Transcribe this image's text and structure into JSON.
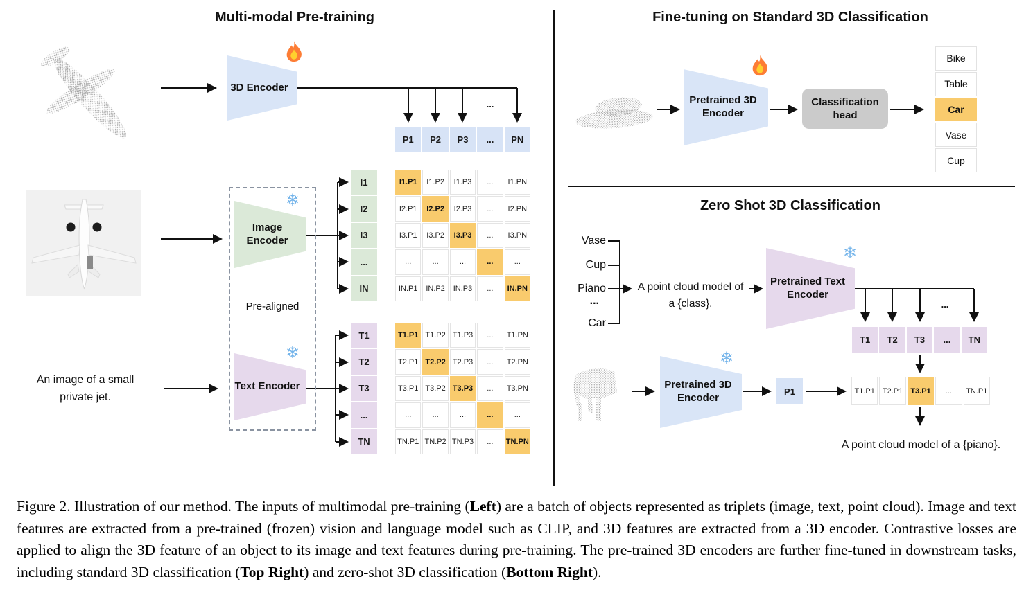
{
  "ellipsis": "...",
  "icons": {
    "snowflake": "❄",
    "fire": "flame"
  },
  "colors": {
    "encoder_blue": "#d9e5f7",
    "encoder_green": "#dbe9d8",
    "encoder_purple": "#e6d9ec",
    "cell_blue": "#d7e3f6",
    "highlight_orange": "#f9cb6d",
    "classification_head_gray": "#cbcbcb",
    "snowflake_blue": "#72b3ea"
  },
  "left_panel": {
    "title": "Multi-modal Pre-training",
    "encoder_3d_label": "3D Encoder",
    "image_encoder_label": "Image Encoder",
    "text_encoder_label": "Text Encoder",
    "pre_aligned_label": "Pre-aligned",
    "image_caption_line1": "An image of a small",
    "image_caption_line2": "private jet."
  },
  "top_right_panel": {
    "title": "Fine-tuning on Standard 3D Classification",
    "pretrained_3d_encoder_label": "Pretrained 3D Encoder",
    "classification_head_label": "Classification head"
  },
  "bottom_right_panel": {
    "title": "Zero Shot 3D Classification",
    "class_labels": [
      "Vase",
      "Cup",
      "Piano",
      "...",
      "Car"
    ],
    "prompt_line1": "A point cloud model of",
    "prompt_line2": "a {class}.",
    "pretrained_text_encoder_label": "Pretrained Text Encoder",
    "pretrained_3d_encoder_label": "Pretrained 3D Encoder",
    "p1_label": "P1",
    "result_text": "A point cloud model of a {piano}."
  },
  "grids": {
    "p_row": {
      "cells": [
        [
          "P1",
          "P2",
          "P3",
          "...",
          "PN"
        ]
      ]
    },
    "i_labels": {
      "cells": [
        [
          "I1"
        ],
        [
          "I2"
        ],
        [
          "I3"
        ],
        [
          "..."
        ],
        [
          "IN"
        ]
      ]
    },
    "i_matrix": {
      "cells": [
        [
          "I1.P1",
          "I1.P2",
          "I1.P3",
          "...",
          "I1.PN"
        ],
        [
          "I2.P1",
          "I2.P2",
          "I2.P3",
          "...",
          "I2.PN"
        ],
        [
          "I3.P1",
          "I3.P2",
          "I3.P3",
          "...",
          "I3.PN"
        ],
        [
          "...",
          "...",
          "...",
          "...",
          "..."
        ],
        [
          "IN.P1",
          "IN.P2",
          "IN.P3",
          "...",
          "IN.PN"
        ]
      ],
      "highlights": [
        [
          0,
          0
        ],
        [
          1,
          1
        ],
        [
          2,
          2
        ],
        [
          3,
          3
        ],
        [
          4,
          4
        ]
      ]
    },
    "t_labels": {
      "cells": [
        [
          "T1"
        ],
        [
          "T2"
        ],
        [
          "T3"
        ],
        [
          "..."
        ],
        [
          "TN"
        ]
      ]
    },
    "t_matrix": {
      "cells": [
        [
          "T1.P1",
          "T1.P2",
          "T1.P3",
          "...",
          "T1.PN"
        ],
        [
          "T2.P1",
          "T2.P2",
          "T2.P3",
          "...",
          "T2.PN"
        ],
        [
          "T3.P1",
          "T3.P2",
          "T3.P3",
          "...",
          "T3.PN"
        ],
        [
          "...",
          "...",
          "...",
          "...",
          "..."
        ],
        [
          "TN.P1",
          "TN.P2",
          "TN.P3",
          "...",
          "TN.PN"
        ]
      ],
      "highlights": [
        [
          0,
          0
        ],
        [
          1,
          1
        ],
        [
          2,
          2
        ],
        [
          3,
          3
        ],
        [
          4,
          4
        ]
      ]
    },
    "class_list": {
      "cells": [
        [
          "Bike"
        ],
        [
          "Table"
        ],
        [
          "Car"
        ],
        [
          "Vase"
        ],
        [
          "Cup"
        ]
      ],
      "highlights": [
        [
          2,
          0
        ]
      ]
    },
    "t_row": {
      "cells": [
        [
          "T1",
          "T2",
          "T3",
          "...",
          "TN"
        ]
      ]
    },
    "result_row": {
      "cells": [
        [
          "T1.P1",
          "T2.P1",
          "T3.P1",
          "...",
          "TN.P1"
        ]
      ],
      "highlights": [
        [
          0,
          2
        ]
      ]
    }
  },
  "caption": {
    "part1": "Figure 2. Illustration of our method. The inputs of multimodal pre-training (",
    "bold1": "Left",
    "part2": ") are a batch of objects represented as triplets (image, text, point cloud). Image and text features are extracted from a pre-trained (frozen) vision and language model such as CLIP, and 3D features are extracted from a 3D encoder. Contrastive losses are applied to align the 3D feature of an object to its image and text features during pre-training. The pre-trained 3D encoders are further fine-tuned in downstream tasks, including standard 3D classification (",
    "bold2": "Top Right",
    "part3": ") and zero-shot 3D classification (",
    "bold3": "Bottom Right",
    "part4": ")."
  }
}
